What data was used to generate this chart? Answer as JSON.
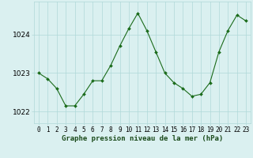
{
  "x": [
    0,
    1,
    2,
    3,
    4,
    5,
    6,
    7,
    8,
    9,
    10,
    11,
    12,
    13,
    14,
    15,
    16,
    17,
    18,
    19,
    20,
    21,
    22,
    23
  ],
  "y": [
    1023.0,
    1022.85,
    1022.6,
    1022.15,
    1022.15,
    1022.45,
    1022.8,
    1022.8,
    1023.2,
    1023.7,
    1024.15,
    1024.55,
    1024.1,
    1023.55,
    1023.0,
    1022.75,
    1022.6,
    1022.4,
    1022.45,
    1022.75,
    1023.55,
    1024.1,
    1024.5,
    1024.35
  ],
  "line_color": "#1a6b1a",
  "marker": "D",
  "marker_size": 2.0,
  "line_width": 0.8,
  "bg_color": "#daf0f0",
  "grid_color": "#b0d8d8",
  "xlabel": "Graphe pression niveau de la mer (hPa)",
  "xlabel_fontsize": 6.5,
  "xlabel_bold": true,
  "xtick_labels": [
    "0",
    "1",
    "2",
    "3",
    "4",
    "5",
    "6",
    "7",
    "8",
    "9",
    "10",
    "11",
    "12",
    "13",
    "14",
    "15",
    "16",
    "17",
    "18",
    "19",
    "20",
    "21",
    "22",
    "23"
  ],
  "yticks": [
    1022,
    1023,
    1024
  ],
  "ylim": [
    1021.7,
    1024.85
  ],
  "xlim": [
    -0.5,
    23.5
  ],
  "ytick_fontsize": 6.5,
  "xtick_fontsize": 5.5
}
